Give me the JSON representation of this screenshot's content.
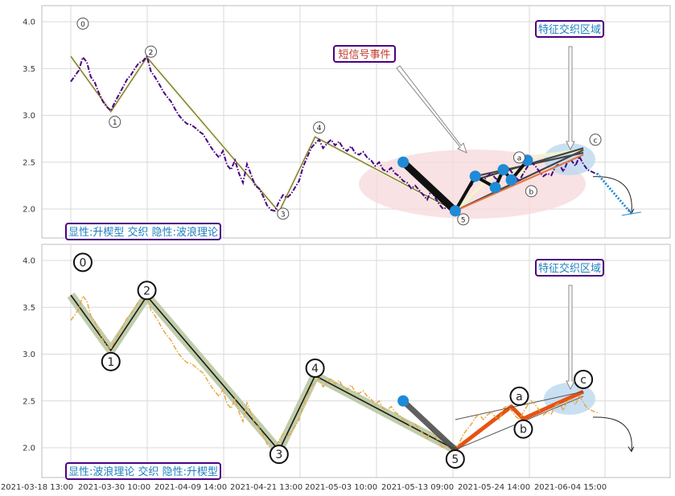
{
  "chart_data": [
    {
      "type": "line",
      "panel": "top",
      "title": "",
      "xlabel": "",
      "ylabel": "",
      "ylim": [
        1.65,
        4.15
      ],
      "yticks": [
        "4.0",
        "3.5",
        "3.0",
        "2.5",
        "2.0"
      ],
      "grid": true,
      "caption": "显性:升楔型 交织 隐性:波浪理论",
      "annotations": {
        "short_signal": "短信号事件",
        "feature_zone": "特征交织区域"
      },
      "wave_labels": [
        {
          "text": "0",
          "x": 3,
          "y": 3.98
        },
        {
          "text": "1",
          "x": 11,
          "y": 2.93
        },
        {
          "text": "2",
          "x": 20,
          "y": 3.68
        },
        {
          "text": "3",
          "x": 53,
          "y": 1.95
        },
        {
          "text": "4",
          "x": 62,
          "y": 2.87
        },
        {
          "text": "5",
          "x": 98,
          "y": 1.89
        },
        {
          "text": "a",
          "x": 112,
          "y": 2.55
        },
        {
          "text": "b",
          "x": 115,
          "y": 2.19
        },
        {
          "text": "c",
          "x": 131,
          "y": 2.74
        }
      ],
      "wave_path": [
        [
          0,
          3.63
        ],
        [
          10,
          3.04
        ],
        [
          19,
          3.62
        ],
        [
          52,
          1.97
        ],
        [
          61,
          2.77
        ],
        [
          96,
          1.98
        ],
        [
          105,
          2.35
        ],
        [
          110,
          2.45
        ],
        [
          112,
          2.37
        ],
        [
          116,
          2.56
        ],
        [
          128,
          2.63
        ]
      ],
      "series_price": [
        [
          0,
          3.36
        ],
        [
          1,
          3.42
        ],
        [
          2,
          3.48
        ],
        [
          3,
          3.62
        ],
        [
          4,
          3.57
        ],
        [
          5,
          3.41
        ],
        [
          6,
          3.35
        ],
        [
          7,
          3.24
        ],
        [
          8,
          3.15
        ],
        [
          9,
          3.09
        ],
        [
          10,
          3.05
        ],
        [
          11,
          3.14
        ],
        [
          12,
          3.22
        ],
        [
          13,
          3.3
        ],
        [
          14,
          3.38
        ],
        [
          15,
          3.43
        ],
        [
          16,
          3.5
        ],
        [
          17,
          3.56
        ],
        [
          18,
          3.58
        ],
        [
          19,
          3.63
        ],
        [
          20,
          3.47
        ],
        [
          21,
          3.41
        ],
        [
          22,
          3.34
        ],
        [
          23,
          3.26
        ],
        [
          24,
          3.2
        ],
        [
          25,
          3.15
        ],
        [
          26,
          3.07
        ],
        [
          27,
          3.0
        ],
        [
          28,
          2.95
        ],
        [
          29,
          2.91
        ],
        [
          30,
          2.9
        ],
        [
          31,
          2.87
        ],
        [
          32,
          2.83
        ],
        [
          33,
          2.8
        ],
        [
          34,
          2.73
        ],
        [
          35,
          2.66
        ],
        [
          36,
          2.6
        ],
        [
          37,
          2.55
        ],
        [
          38,
          2.62
        ],
        [
          39,
          2.47
        ],
        [
          40,
          2.42
        ],
        [
          41,
          2.52
        ],
        [
          42,
          2.38
        ],
        [
          43,
          2.28
        ],
        [
          44,
          2.48
        ],
        [
          45,
          2.37
        ],
        [
          46,
          2.25
        ],
        [
          47,
          2.22
        ],
        [
          48,
          2.14
        ],
        [
          49,
          2.04
        ],
        [
          50,
          1.99
        ],
        [
          51,
          1.98
        ],
        [
          52,
          2.08
        ],
        [
          53,
          2.15
        ],
        [
          54,
          2.12
        ],
        [
          55,
          2.16
        ],
        [
          56,
          2.23
        ],
        [
          57,
          2.3
        ],
        [
          58,
          2.45
        ],
        [
          59,
          2.55
        ],
        [
          60,
          2.65
        ],
        [
          61,
          2.7
        ],
        [
          62,
          2.74
        ],
        [
          63,
          2.65
        ],
        [
          64,
          2.7
        ],
        [
          65,
          2.74
        ],
        [
          66,
          2.68
        ],
        [
          67,
          2.72
        ],
        [
          68,
          2.65
        ],
        [
          69,
          2.62
        ],
        [
          70,
          2.67
        ],
        [
          71,
          2.6
        ],
        [
          72,
          2.58
        ],
        [
          73,
          2.61
        ],
        [
          74,
          2.55
        ],
        [
          75,
          2.52
        ],
        [
          76,
          2.46
        ],
        [
          77,
          2.5
        ],
        [
          78,
          2.42
        ],
        [
          79,
          2.4
        ],
        [
          80,
          2.44
        ],
        [
          81,
          2.38
        ],
        [
          82,
          2.35
        ],
        [
          83,
          2.3
        ],
        [
          84,
          2.28
        ],
        [
          85,
          2.22
        ],
        [
          86,
          2.25
        ],
        [
          87,
          2.2
        ],
        [
          88,
          2.15
        ],
        [
          89,
          2.1
        ],
        [
          90,
          2.2
        ],
        [
          91,
          2.12
        ],
        [
          92,
          2.05
        ],
        [
          93,
          2.0
        ],
        [
          94,
          2.02
        ],
        [
          95,
          1.99
        ],
        [
          96,
          1.98
        ],
        [
          97,
          2.05
        ],
        [
          98,
          2.14
        ],
        [
          99,
          2.2
        ],
        [
          100,
          2.25
        ],
        [
          101,
          2.32
        ],
        [
          102,
          2.36
        ],
        [
          103,
          2.3
        ],
        [
          104,
          2.35
        ],
        [
          105,
          2.38
        ],
        [
          106,
          2.33
        ],
        [
          107,
          2.3
        ],
        [
          108,
          2.42
        ],
        [
          109,
          2.45
        ],
        [
          110,
          2.4
        ],
        [
          111,
          2.34
        ],
        [
          112,
          2.3
        ],
        [
          113,
          2.38
        ],
        [
          114,
          2.45
        ],
        [
          115,
          2.5
        ],
        [
          116,
          2.46
        ],
        [
          117,
          2.4
        ],
        [
          118,
          2.35
        ],
        [
          119,
          2.38
        ],
        [
          120,
          2.36
        ],
        [
          121,
          2.45
        ],
        [
          122,
          2.48
        ],
        [
          123,
          2.4
        ],
        [
          124,
          2.5
        ],
        [
          125,
          2.52
        ],
        [
          126,
          2.46
        ],
        [
          127,
          2.56
        ],
        [
          128,
          2.48
        ],
        [
          129,
          2.42
        ],
        [
          130,
          2.4
        ],
        [
          131,
          2.38
        ],
        [
          132,
          2.37
        ]
      ],
      "signal_points": [
        [
          83,
          2.5
        ],
        [
          96,
          1.98
        ],
        [
          101,
          2.35
        ],
        [
          106,
          2.23
        ],
        [
          108,
          2.42
        ],
        [
          110,
          2.31
        ],
        [
          114,
          2.52
        ]
      ],
      "wedge_lines": [
        [
          [
            96,
            1.98
          ],
          [
            128,
            2.63
          ]
        ],
        [
          [
            100,
            2.3
          ],
          [
            128,
            2.65
          ]
        ],
        [
          [
            101,
            2.35
          ],
          [
            128,
            2.6
          ]
        ]
      ],
      "forecast_path": [
        [
          132,
          2.38
        ],
        [
          140,
          1.95
        ]
      ]
    },
    {
      "type": "line",
      "panel": "bottom",
      "title": "",
      "xlabel": "",
      "ylabel": "",
      "ylim": [
        1.65,
        4.15
      ],
      "yticks": [
        "4.0",
        "3.5",
        "3.0",
        "2.5",
        "2.0"
      ],
      "grid": true,
      "caption": "显性:波浪理论 交织 隐性:升楔型",
      "annotations": {
        "feature_zone": "特征交织区域"
      },
      "xtick_labels": [
        "2021-03-18 13:00",
        "2021-03-30 10:00",
        "2021-04-09 14:00",
        "2021-04-21 13:00",
        "2021-05-03 10:00",
        "2021-05-13 09:00",
        "2021-05-24 14:00",
        "2021-06-04 15:00"
      ],
      "wave_labels": [
        {
          "text": "0",
          "x": 3,
          "y": 3.98
        },
        {
          "text": "1",
          "x": 10,
          "y": 2.92
        },
        {
          "text": "2",
          "x": 19,
          "y": 3.68
        },
        {
          "text": "3",
          "x": 52,
          "y": 1.93
        },
        {
          "text": "4",
          "x": 61,
          "y": 2.85
        },
        {
          "text": "5",
          "x": 96,
          "y": 1.88
        },
        {
          "text": "a",
          "x": 112,
          "y": 2.55
        },
        {
          "text": "b",
          "x": 113,
          "y": 2.2
        },
        {
          "text": "c",
          "x": 128,
          "y": 2.73
        }
      ],
      "wave_path": [
        [
          0,
          3.63
        ],
        [
          10,
          3.04
        ],
        [
          19,
          3.62
        ],
        [
          52,
          1.97
        ],
        [
          61,
          2.77
        ],
        [
          96,
          1.98
        ],
        [
          110,
          2.44
        ],
        [
          113,
          2.31
        ],
        [
          128,
          2.6
        ]
      ],
      "series_price": [
        [
          0,
          3.36
        ],
        [
          1,
          3.42
        ],
        [
          2,
          3.48
        ],
        [
          3,
          3.62
        ],
        [
          4,
          3.57
        ],
        [
          5,
          3.41
        ],
        [
          6,
          3.35
        ],
        [
          7,
          3.24
        ],
        [
          8,
          3.15
        ],
        [
          9,
          3.09
        ],
        [
          10,
          3.05
        ],
        [
          11,
          3.14
        ],
        [
          12,
          3.22
        ],
        [
          13,
          3.3
        ],
        [
          14,
          3.38
        ],
        [
          15,
          3.43
        ],
        [
          16,
          3.5
        ],
        [
          17,
          3.56
        ],
        [
          18,
          3.58
        ],
        [
          19,
          3.63
        ],
        [
          20,
          3.47
        ],
        [
          21,
          3.41
        ],
        [
          22,
          3.34
        ],
        [
          23,
          3.26
        ],
        [
          24,
          3.2
        ],
        [
          25,
          3.15
        ],
        [
          26,
          3.07
        ],
        [
          27,
          3.0
        ],
        [
          28,
          2.95
        ],
        [
          29,
          2.91
        ],
        [
          30,
          2.9
        ],
        [
          31,
          2.87
        ],
        [
          32,
          2.83
        ],
        [
          33,
          2.8
        ],
        [
          34,
          2.73
        ],
        [
          35,
          2.66
        ],
        [
          36,
          2.6
        ],
        [
          37,
          2.55
        ],
        [
          38,
          2.62
        ],
        [
          39,
          2.47
        ],
        [
          40,
          2.42
        ],
        [
          41,
          2.52
        ],
        [
          42,
          2.38
        ],
        [
          43,
          2.28
        ],
        [
          44,
          2.48
        ],
        [
          45,
          2.37
        ],
        [
          46,
          2.25
        ],
        [
          47,
          2.22
        ],
        [
          48,
          2.14
        ],
        [
          49,
          2.04
        ],
        [
          50,
          1.99
        ],
        [
          51,
          1.98
        ],
        [
          52,
          2.08
        ],
        [
          53,
          2.15
        ],
        [
          54,
          2.12
        ],
        [
          55,
          2.16
        ],
        [
          56,
          2.23
        ],
        [
          57,
          2.3
        ],
        [
          58,
          2.45
        ],
        [
          59,
          2.55
        ],
        [
          60,
          2.65
        ],
        [
          61,
          2.7
        ],
        [
          62,
          2.74
        ],
        [
          63,
          2.65
        ],
        [
          64,
          2.7
        ],
        [
          65,
          2.74
        ],
        [
          66,
          2.68
        ],
        [
          67,
          2.72
        ],
        [
          68,
          2.65
        ],
        [
          69,
          2.62
        ],
        [
          70,
          2.67
        ],
        [
          71,
          2.6
        ],
        [
          72,
          2.58
        ],
        [
          73,
          2.61
        ],
        [
          74,
          2.55
        ],
        [
          75,
          2.52
        ],
        [
          76,
          2.46
        ],
        [
          77,
          2.5
        ],
        [
          78,
          2.42
        ],
        [
          79,
          2.4
        ],
        [
          80,
          2.44
        ],
        [
          81,
          2.38
        ],
        [
          82,
          2.35
        ],
        [
          83,
          2.3
        ],
        [
          84,
          2.28
        ],
        [
          85,
          2.22
        ],
        [
          86,
          2.25
        ],
        [
          87,
          2.2
        ],
        [
          88,
          2.15
        ],
        [
          89,
          2.1
        ],
        [
          90,
          2.2
        ],
        [
          91,
          2.12
        ],
        [
          92,
          2.05
        ],
        [
          93,
          2.0
        ],
        [
          94,
          2.02
        ],
        [
          95,
          1.99
        ],
        [
          96,
          1.98
        ],
        [
          97,
          2.05
        ],
        [
          98,
          2.14
        ],
        [
          99,
          2.2
        ],
        [
          100,
          2.25
        ],
        [
          101,
          2.32
        ],
        [
          102,
          2.36
        ],
        [
          103,
          2.3
        ],
        [
          104,
          2.35
        ],
        [
          105,
          2.38
        ],
        [
          106,
          2.33
        ],
        [
          107,
          2.3
        ],
        [
          108,
          2.42
        ],
        [
          109,
          2.45
        ],
        [
          110,
          2.4
        ],
        [
          111,
          2.34
        ],
        [
          112,
          2.3
        ],
        [
          113,
          2.38
        ],
        [
          114,
          2.45
        ],
        [
          115,
          2.5
        ],
        [
          116,
          2.46
        ],
        [
          117,
          2.4
        ],
        [
          118,
          2.35
        ],
        [
          119,
          2.38
        ],
        [
          120,
          2.36
        ],
        [
          121,
          2.45
        ],
        [
          122,
          2.48
        ],
        [
          123,
          2.4
        ],
        [
          124,
          2.5
        ],
        [
          125,
          2.52
        ],
        [
          126,
          2.46
        ],
        [
          127,
          2.56
        ],
        [
          128,
          2.48
        ],
        [
          129,
          2.42
        ],
        [
          130,
          2.4
        ],
        [
          131,
          2.38
        ],
        [
          132,
          2.37
        ]
      ],
      "signal_points": [
        [
          83,
          2.5
        ]
      ],
      "signal_track": [
        [
          83,
          2.5
        ],
        [
          96,
          1.98
        ]
      ],
      "wedge_lines": [
        [
          [
            96,
            2.3
          ],
          [
            128,
            2.6
          ]
        ],
        [
          [
            96,
            1.98
          ],
          [
            128,
            2.55
          ]
        ]
      ],
      "forecast_path": [
        [
          132,
          2.36
        ],
        [
          140,
          1.96
        ]
      ]
    }
  ],
  "colors": {
    "top_price": "#4b0082",
    "bottom_price": "#e8a33a",
    "wave_top": "#6b6b3a",
    "wave_bottom_halo": "#b5c49b",
    "orange_wave": "#e65312",
    "signal_point": "#1f8ad6",
    "ellipse_fill": "#f6d8da",
    "zone_fill": "#bcd8f0",
    "caption_border": "#4b0082",
    "caption_text": "#1e7fbf",
    "short_signal_text": "#c0392b"
  }
}
